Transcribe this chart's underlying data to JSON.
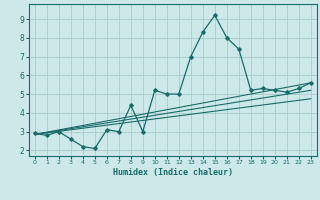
{
  "title": "",
  "xlabel": "Humidex (Indice chaleur)",
  "bg_color": "#cce8e8",
  "grid_color": "#aacccc",
  "line_color": "#1a6b6b",
  "xlim": [
    -0.5,
    23.5
  ],
  "ylim": [
    1.7,
    9.8
  ],
  "xticks": [
    0,
    1,
    2,
    3,
    4,
    5,
    6,
    7,
    8,
    9,
    10,
    11,
    12,
    13,
    14,
    15,
    16,
    17,
    18,
    19,
    20,
    21,
    22,
    23
  ],
  "yticks": [
    2,
    3,
    4,
    5,
    6,
    7,
    8,
    9
  ],
  "main_x": [
    0,
    1,
    2,
    3,
    4,
    5,
    6,
    7,
    8,
    9,
    10,
    11,
    12,
    13,
    14,
    15,
    16,
    17,
    18,
    19,
    20,
    21,
    22,
    23
  ],
  "main_y": [
    2.9,
    2.8,
    3.0,
    2.6,
    2.2,
    2.1,
    3.1,
    3.0,
    4.4,
    3.0,
    5.2,
    5.0,
    5.0,
    7.0,
    8.3,
    9.2,
    8.0,
    7.4,
    5.2,
    5.3,
    5.2,
    5.1,
    5.3,
    5.6
  ],
  "line1_x": [
    0,
    23
  ],
  "line1_y": [
    2.85,
    5.6
  ],
  "line2_x": [
    0,
    23
  ],
  "line2_y": [
    2.85,
    5.2
  ],
  "line3_x": [
    0,
    23
  ],
  "line3_y": [
    2.85,
    4.75
  ]
}
